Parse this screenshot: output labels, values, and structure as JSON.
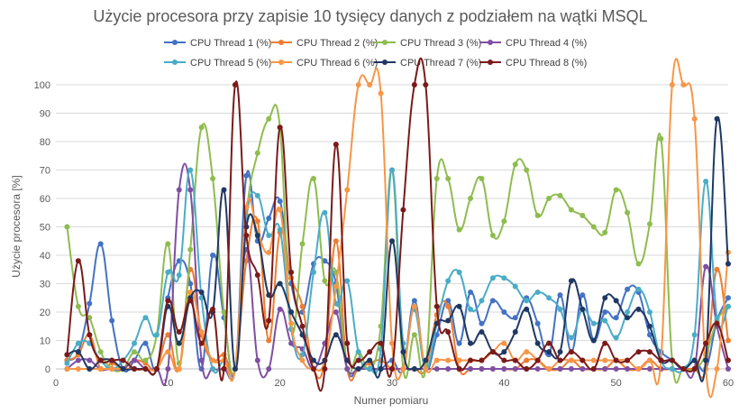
{
  "chart_data": {
    "type": "line",
    "title": "Użycie procesora przy zapisie 10 tysięcy danych z podziałem na wątki  MSQL",
    "xlabel": "Numer pomiaru",
    "ylabel": "Użycie procesora [%]",
    "xlim": [
      0,
      60
    ],
    "ylim": [
      0,
      100
    ],
    "x_ticks": [
      0,
      10,
      20,
      30,
      40,
      50,
      60
    ],
    "y_ticks": [
      0,
      10,
      20,
      30,
      40,
      50,
      60,
      70,
      80,
      90,
      100
    ],
    "grid": "horizontal",
    "legend_position": "top",
    "x": [
      1,
      2,
      3,
      4,
      5,
      6,
      7,
      8,
      9,
      10,
      11,
      12,
      13,
      14,
      15,
      16,
      17,
      18,
      19,
      20,
      21,
      22,
      23,
      24,
      25,
      26,
      27,
      28,
      29,
      30,
      31,
      32,
      33,
      34,
      35,
      36,
      37,
      38,
      39,
      40,
      41,
      42,
      43,
      44,
      45,
      46,
      47,
      48,
      49,
      50,
      51,
      52,
      53,
      54,
      55,
      56,
      57,
      58,
      59,
      60
    ],
    "series": [
      {
        "name": "CPU Thread 1 (%)",
        "color": "#4472c4",
        "values": [
          3,
          6,
          23,
          44,
          17,
          0,
          3,
          9,
          0,
          25,
          38,
          30,
          0,
          40,
          18,
          0,
          68,
          45,
          53,
          59,
          30,
          20,
          37,
          38,
          30,
          0,
          0,
          0,
          0,
          3,
          0,
          24,
          0,
          12,
          24,
          9,
          27,
          16,
          24,
          20,
          18,
          25,
          16,
          5,
          26,
          6,
          26,
          10,
          20,
          18,
          28,
          27,
          12,
          6,
          3,
          0,
          3,
          0,
          17,
          25
        ]
      },
      {
        "name": "CPU Thread 2 (%)",
        "color": "#ed7d31",
        "values": [
          3,
          5,
          12,
          0,
          2,
          0,
          3,
          2,
          0,
          12,
          0,
          35,
          12,
          3,
          5,
          0,
          38,
          52,
          10,
          48,
          32,
          22,
          0,
          3,
          45,
          0,
          0,
          2,
          3,
          0,
          0,
          0,
          0,
          19,
          22,
          0,
          0,
          0,
          0,
          0,
          0,
          3,
          3,
          0,
          0,
          3,
          0,
          0,
          0,
          3,
          0,
          0,
          3,
          0,
          0,
          0,
          0,
          0,
          35,
          10
        ]
      },
      {
        "name": "CPU Thread 3 (%)",
        "color": "#8fbc4f",
        "values": [
          50,
          22,
          18,
          6,
          0,
          0,
          6,
          3,
          12,
          44,
          2,
          42,
          85,
          67,
          20,
          0,
          54,
          76,
          88,
          85,
          14,
          44,
          67,
          31,
          34,
          0,
          6,
          0,
          15,
          70,
          0,
          12,
          0,
          67,
          67,
          49,
          60,
          67,
          47,
          52,
          72,
          70,
          54,
          60,
          61,
          56,
          54,
          50,
          48,
          63,
          55,
          37,
          51,
          81,
          3,
          0,
          0,
          5,
          17,
          22
        ]
      },
      {
        "name": "CPU Thread 4 (%)",
        "color": "#7f4fa2",
        "values": [
          0,
          3,
          3,
          0,
          0,
          0,
          3,
          0,
          0,
          0,
          63,
          63,
          3,
          0,
          0,
          0,
          42,
          3,
          0,
          21,
          9,
          7,
          0,
          9,
          20,
          0,
          0,
          0,
          0,
          0,
          0,
          0,
          0,
          0,
          0,
          0,
          0,
          0,
          0,
          0,
          0,
          0,
          0,
          0,
          0,
          0,
          0,
          0,
          0,
          0,
          0,
          0,
          0,
          0,
          0,
          0,
          0,
          36,
          15,
          0
        ]
      },
      {
        "name": "CPU Thread 5 (%)",
        "color": "#4bacc6",
        "values": [
          2,
          9,
          9,
          3,
          0,
          3,
          9,
          18,
          12,
          34,
          33,
          70,
          25,
          0,
          3,
          0,
          53,
          61,
          47,
          49,
          14,
          5,
          34,
          55,
          23,
          31,
          6,
          0,
          7,
          70,
          9,
          21,
          0,
          16,
          31,
          34,
          21,
          24,
          32,
          32,
          29,
          24,
          27,
          25,
          21,
          11,
          21,
          16,
          17,
          11,
          20,
          28,
          20,
          3,
          0,
          0,
          12,
          66,
          18,
          22
        ]
      },
      {
        "name": "CPU Thread 6 (%)",
        "color": "#f79646",
        "values": [
          0,
          0,
          0,
          0,
          0,
          0,
          0,
          0,
          0,
          6,
          0,
          27,
          13,
          3,
          3,
          0,
          57,
          48,
          41,
          56,
          16,
          3,
          0,
          3,
          29,
          63,
          100,
          100,
          97,
          9,
          0,
          22,
          0,
          3,
          3,
          3,
          3,
          3,
          6,
          9,
          3,
          6,
          3,
          0,
          3,
          3,
          3,
          3,
          3,
          3,
          3,
          0,
          3,
          3,
          100,
          100,
          88,
          0,
          0,
          41
        ]
      },
      {
        "name": "CPU Thread 7 (%)",
        "color": "#1f3864",
        "values": [
          5,
          6,
          0,
          3,
          3,
          0,
          0,
          0,
          0,
          22,
          9,
          25,
          27,
          20,
          63,
          0,
          50,
          47,
          26,
          30,
          20,
          12,
          3,
          3,
          12,
          3,
          0,
          3,
          0,
          45,
          6,
          0,
          3,
          16,
          17,
          22,
          9,
          13,
          6,
          6,
          13,
          21,
          9,
          6,
          6,
          31,
          21,
          10,
          25,
          24,
          18,
          21,
          15,
          3,
          3,
          0,
          3,
          3,
          88,
          37
        ]
      },
      {
        "name": "CPU Thread 8 (%)",
        "color": "#7b1a1a",
        "values": [
          5,
          38,
          12,
          3,
          3,
          3,
          0,
          0,
          0,
          24,
          13,
          24,
          9,
          21,
          0,
          100,
          47,
          33,
          17,
          85,
          34,
          15,
          0,
          0,
          79,
          9,
          3,
          6,
          9,
          0,
          56,
          100,
          100,
          22,
          13,
          0,
          3,
          3,
          6,
          3,
          3,
          0,
          3,
          9,
          3,
          6,
          3,
          0,
          9,
          3,
          3,
          6,
          6,
          3,
          3,
          0,
          0,
          9,
          16,
          3
        ]
      }
    ]
  }
}
